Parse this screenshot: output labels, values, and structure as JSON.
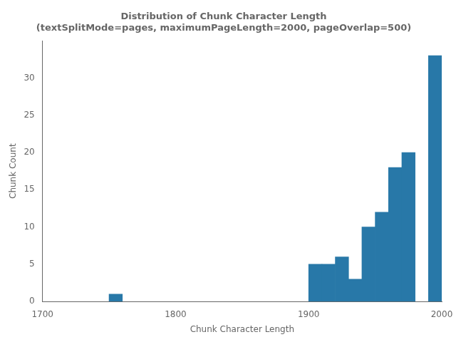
{
  "chart_data": {
    "type": "bar",
    "title": "Distribution of Chunk Character Length\n(textSplitMode=pages, maximumPageLength=2000, pageOverlap=500)",
    "xlabel": "Chunk Character Length",
    "ylabel": "Chunk Count",
    "x": [
      1750,
      1900,
      1910,
      1920,
      1930,
      1940,
      1950,
      1960,
      1970,
      1990
    ],
    "values": [
      1,
      5,
      5,
      6,
      3,
      10,
      12,
      18,
      20,
      33
    ],
    "bin_width": 10,
    "color": "#2878a8",
    "xlim": [
      1700,
      2000
    ],
    "ylim": [
      0,
      35
    ],
    "xticks": [
      1700,
      1800,
      1900,
      2000
    ],
    "yticks": [
      0,
      5,
      10,
      15,
      20,
      25,
      30
    ],
    "grid": false
  }
}
